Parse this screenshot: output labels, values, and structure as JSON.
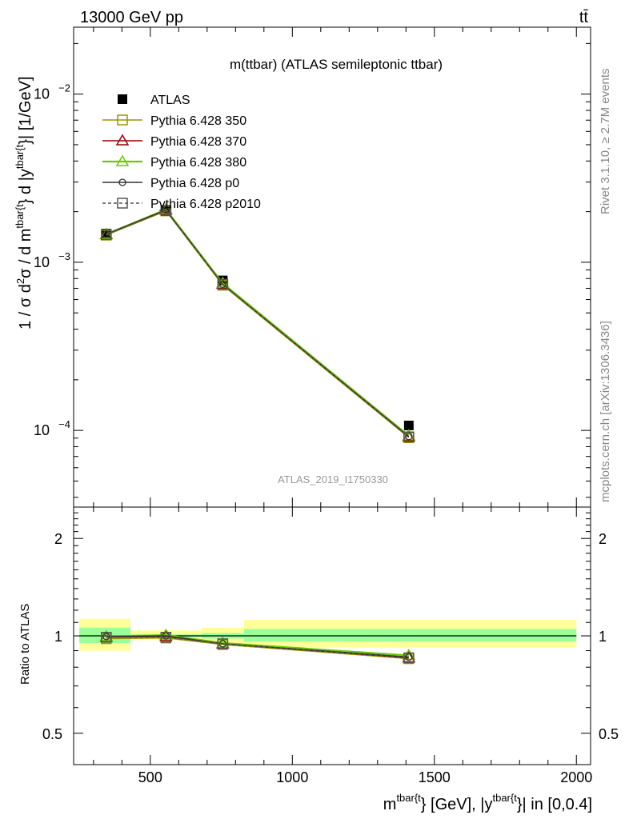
{
  "header": {
    "left": "13000 GeV pp",
    "right": "tt̄"
  },
  "side": {
    "rivet": "Rivet 3.1.10, ≥ 2.7M events",
    "mcplots": "mcplots.cern.ch [arXiv:1306.3436]"
  },
  "chart_data": [
    {
      "panel": "main",
      "type": "line",
      "title": "m(ttbar) (ATLAS semileptonic ttbar)",
      "watermark": "ATLAS_2019_I1750330",
      "ylabel_parts": [
        "1 / σ d",
        "2",
        "σ / d m",
        "tbar{t",
        "} d |y",
        "tbar{t",
        "}| [1/GeV]"
      ],
      "yscale": "log",
      "ylim": [
        3.5e-05,
        0.025
      ],
      "xlim": [
        230,
        2050
      ],
      "ytick_labels": [
        {
          "value": 0.0001,
          "base": "10",
          "exp": "−4"
        },
        {
          "value": 0.001,
          "base": "10",
          "exp": "−3"
        },
        {
          "value": 0.01,
          "base": "10",
          "exp": "−2"
        }
      ],
      "legend_position": "top-left",
      "series": [
        {
          "name": "ATLAS",
          "marker": "filled-square",
          "color": "#000000",
          "x": [
            345,
            555,
            755,
            1410
          ],
          "y": [
            0.00148,
            0.00205,
            0.00078,
            0.000107
          ]
        },
        {
          "name": "Pythia 6.428 350",
          "marker": "open-square",
          "color": "#999900",
          "x": [
            345,
            555,
            755,
            1410
          ],
          "y": [
            0.00145,
            0.00202,
            0.00073,
            9.05e-05
          ]
        },
        {
          "name": "Pythia 6.428 370",
          "marker": "open-triangle",
          "color": "#990000",
          "x": [
            345,
            555,
            755,
            1410
          ],
          "y": [
            0.00146,
            0.00204,
            0.00074,
            9.15e-05
          ]
        },
        {
          "name": "Pythia 6.428 380",
          "marker": "open-triangle",
          "color": "#66cc00",
          "x": [
            345,
            555,
            755,
            1410
          ],
          "y": [
            0.00147,
            0.00206,
            0.00075,
            9.3e-05
          ]
        },
        {
          "name": "Pythia 6.428 p0",
          "marker": "open-circle",
          "color": "#333333",
          "x": [
            345,
            555,
            755,
            1410
          ],
          "y": [
            0.00147,
            0.00205,
            0.00074,
            9.2e-05
          ]
        },
        {
          "name": "Pythia 6.428 p2010",
          "marker": "open-square-dashed",
          "color": "#555555",
          "x": [
            345,
            555,
            755,
            1410
          ],
          "y": [
            0.00146,
            0.00203,
            0.00074,
            9.15e-05
          ]
        }
      ]
    },
    {
      "panel": "ratio",
      "type": "line",
      "ylabel": "Ratio to ATLAS",
      "xlabel_parts": [
        "m",
        "tbar{t",
        "} [GeV], |y",
        "tbar{t",
        "}| in [0,0.4]"
      ],
      "yscale": "log",
      "ylim": [
        0.4,
        2.5
      ],
      "ytick_labels": [
        {
          "value": 0.5,
          "label": "0.5"
        },
        {
          "value": 1,
          "label": "1"
        },
        {
          "value": 2,
          "label": "2"
        }
      ],
      "xtick_labels": [
        {
          "value": 500,
          "label": "500"
        },
        {
          "value": 1000,
          "label": "1000"
        },
        {
          "value": 1500,
          "label": "1500"
        },
        {
          "value": 2000,
          "label": "2000"
        }
      ],
      "bands": {
        "edges": [
          250,
          430,
          680,
          830,
          2000
        ],
        "stat_low": [
          0.95,
          0.99,
          0.98,
          0.96
        ],
        "stat_high": [
          1.06,
          1.01,
          1.02,
          1.05
        ],
        "total_low": [
          0.9,
          0.97,
          0.95,
          0.92
        ],
        "total_high": [
          1.13,
          1.04,
          1.06,
          1.12
        ]
      },
      "series": [
        {
          "name": "Pythia 6.428 350",
          "x": [
            345,
            555,
            755,
            1410
          ],
          "y": [
            0.98,
            0.985,
            0.94,
            0.85
          ]
        },
        {
          "name": "Pythia 6.428 370",
          "x": [
            345,
            555,
            755,
            1410
          ],
          "y": [
            0.99,
            0.995,
            0.945,
            0.855
          ]
        },
        {
          "name": "Pythia 6.428 380",
          "x": [
            345,
            555,
            755,
            1410
          ],
          "y": [
            0.995,
            1.005,
            0.95,
            0.87
          ]
        },
        {
          "name": "Pythia 6.428 p0",
          "x": [
            345,
            555,
            755,
            1410
          ],
          "y": [
            0.995,
            1.0,
            0.945,
            0.86
          ]
        },
        {
          "name": "Pythia 6.428 p2010",
          "x": [
            345,
            555,
            755,
            1410
          ],
          "y": [
            0.99,
            0.99,
            0.945,
            0.855
          ]
        }
      ]
    }
  ]
}
